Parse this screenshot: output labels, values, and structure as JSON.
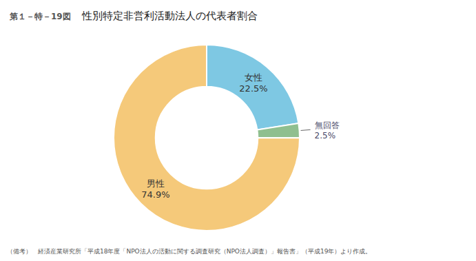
{
  "chart_data": {
    "type": "donut",
    "title": "性別特定非営利活動法人の代表者割合",
    "annotations": [
      "第１－特－19図",
      "（備考）　経済産業研究所「平成18年度「NPO法人の活動に関する調査研究（NPO法人調査）」報告書」（平成19年）より作成。"
    ],
    "categories": [
      "女性",
      "無回答",
      "男性"
    ],
    "values": [
      22.5,
      2.5,
      74.9
    ],
    "value_labels": [
      "22.5%",
      "2.5%",
      "74.9%"
    ],
    "colors": [
      "#7EC8E3",
      "#8FBF8F",
      "#F5C97A"
    ],
    "data_labels": true
  }
}
